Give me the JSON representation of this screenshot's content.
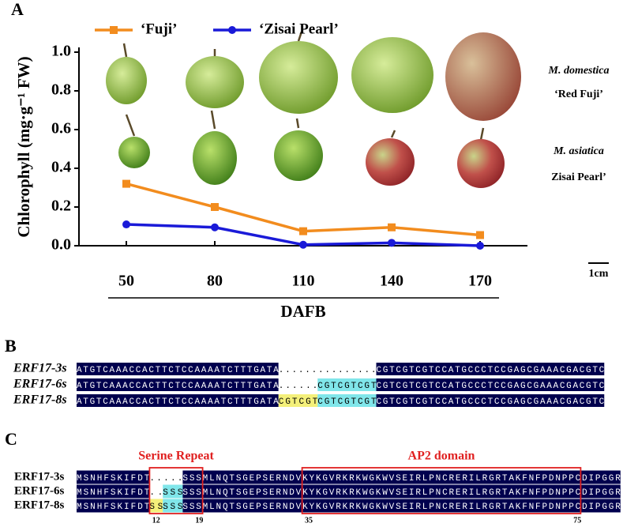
{
  "panel_labels": [
    "A",
    "B",
    "C"
  ],
  "chart_data": {
    "type": "line",
    "y_label": "Chlorophyll (mg·g⁻¹ FW)",
    "x_label": "DAFB",
    "categories": [
      "50",
      "80",
      "110",
      "140",
      "170"
    ],
    "series": [
      {
        "name": "‘Fuji’",
        "color": "#f28c1e",
        "marker": "square",
        "values": [
          0.32,
          0.2,
          0.075,
          0.095,
          0.055
        ]
      },
      {
        "name": "‘Zisai Pearl’",
        "color": "#1a1ad8",
        "marker": "circle",
        "values": [
          0.11,
          0.095,
          0.005,
          0.015,
          0.0
        ]
      }
    ],
    "ylim": [
      0,
      1
    ],
    "yticks": [
      {
        "value": 0,
        "label": "0.0"
      },
      0.2,
      0.4,
      0.6,
      0.8,
      {
        "value": 1,
        "label": "1.0"
      }
    ],
    "fruit_labels": [
      {
        "species": "M. domestica",
        "cultivar": "‘Red Fuji’"
      },
      {
        "species": "M. asiatica",
        "cultivar": "Zisai Pearl’"
      }
    ],
    "scale_bar": "1cm"
  },
  "alignment_b": {
    "rows": [
      {
        "name": "ERF17-3s",
        "segments": [
          {
            "text": "ATGTCAAACCACTTCTCCAAAATCTTTGATA",
            "style": "base"
          },
          {
            "text": "...............",
            "style": "gap"
          },
          {
            "text": "CGTCGTCGTCCATGCCCTCCGAGCGAAACGACGTC",
            "style": "base"
          }
        ]
      },
      {
        "name": "ERF17-6s",
        "segments": [
          {
            "text": "ATGTCAAACCACTTCTCCAAAATCTTTGATA",
            "style": "base"
          },
          {
            "text": "......",
            "style": "gap"
          },
          {
            "text": "CGTCGTCGT",
            "style": "cyan"
          },
          {
            "text": "CGTCGTCGTCCATGCCCTCCGAGCGAAACGACGTC",
            "style": "base"
          }
        ]
      },
      {
        "name": "ERF17-8s",
        "segments": [
          {
            "text": "ATGTCAAACCACTTCTCCAAAATCTTTGATA",
            "style": "base"
          },
          {
            "text": "CGTCGT",
            "style": "yellow"
          },
          {
            "text": "CGTCGTCGT",
            "style": "cyan"
          },
          {
            "text": "CGTCGTCGTCCATGCCCTCCGAGCGAAACGACGTC",
            "style": "base"
          }
        ]
      }
    ]
  },
  "alignment_c": {
    "rows": [
      {
        "name": "ERF17-3s",
        "segments": [
          {
            "text": "MSNHFSKIFDT",
            "style": "base"
          },
          {
            "text": ".....",
            "style": "gap"
          },
          {
            "text": "SSSMLNQTSGEPSERNDVKYKGVRKRKWGKWVSEIRLPNCRERILRGRTAKFNFPDNPPCDIPGGR",
            "style": "base"
          }
        ]
      },
      {
        "name": "ERF17-6s",
        "segments": [
          {
            "text": "MSNHFSKIFDT",
            "style": "base"
          },
          {
            "text": "..",
            "style": "gap"
          },
          {
            "text": "SSS",
            "style": "cyan"
          },
          {
            "text": "SSSMLNQTSGEPSERNDVKYKGVRKRKWGKWVSEIRLPNCRERILRGRTAKFNFPDNPPCDIPGGR",
            "style": "base"
          }
        ]
      },
      {
        "name": "ERF17-8s",
        "segments": [
          {
            "text": "MSNHFSKIFDT",
            "style": "base"
          },
          {
            "text": "SS",
            "style": "yellow"
          },
          {
            "text": "SSS",
            "style": "cyan"
          },
          {
            "text": "SSSMLNQTSGEPSERNDVKYKGVRKRKWGKWVSEIRLPNCRERILRGRTAKFNFPDNPPCDIPGGR",
            "style": "base"
          }
        ]
      }
    ],
    "regions": [
      {
        "label": "Serine Repeat",
        "positions": [
          "12",
          "19"
        ]
      },
      {
        "label": "AP2 domain",
        "positions": [
          "35",
          "75"
        ]
      }
    ]
  }
}
